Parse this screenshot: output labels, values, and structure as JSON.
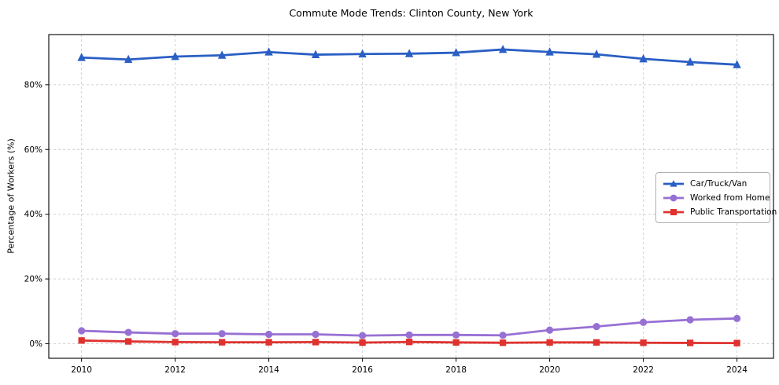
{
  "page": {
    "background": "#ffffff"
  },
  "chart_data": {
    "type": "line",
    "title": "Commute Mode Trends: Clinton County, New York",
    "xlabel": "",
    "ylabel": "Percentage of Workers (%)",
    "x": [
      2010,
      2011,
      2012,
      2013,
      2014,
      2015,
      2016,
      2017,
      2018,
      2019,
      2020,
      2021,
      2022,
      2023,
      2024
    ],
    "x_ticks": [
      2010,
      2012,
      2014,
      2016,
      2018,
      2020,
      2022,
      2024
    ],
    "x_tick_labels": [
      "2010",
      "2012",
      "2014",
      "2016",
      "2018",
      "2020",
      "2022",
      "2024"
    ],
    "y_ticks": [
      0,
      20,
      40,
      60,
      80
    ],
    "y_tick_labels": [
      "0%",
      "20%",
      "40%",
      "60%",
      "80%"
    ],
    "xlim": [
      2009.3,
      2024.78
    ],
    "ylim": [
      -4.5,
      95.5
    ],
    "grid": true,
    "grid_color": "#cccccc",
    "axis_color": "#000000",
    "legend_position": "center-right",
    "series": [
      {
        "name": "Car/Truck/Van",
        "color": "#2a5fc4",
        "marker": "triangle",
        "values": [
          88.4,
          87.8,
          88.7,
          89.1,
          90.1,
          89.3,
          89.5,
          89.6,
          89.9,
          90.9,
          90.1,
          89.4,
          88.0,
          87.0,
          86.2
        ]
      },
      {
        "name": "Worked from Home",
        "color": "#9770d4",
        "marker": "circle",
        "values": [
          4.0,
          3.5,
          3.1,
          3.1,
          2.9,
          2.9,
          2.5,
          2.7,
          2.7,
          2.6,
          4.2,
          5.3,
          6.6,
          7.4,
          7.8
        ]
      },
      {
        "name": "Public Transportation",
        "color": "#df322f",
        "marker": "square",
        "values": [
          1.0,
          0.7,
          0.5,
          0.45,
          0.45,
          0.5,
          0.35,
          0.55,
          0.4,
          0.3,
          0.4,
          0.4,
          0.3,
          0.25,
          0.2
        ]
      }
    ]
  }
}
